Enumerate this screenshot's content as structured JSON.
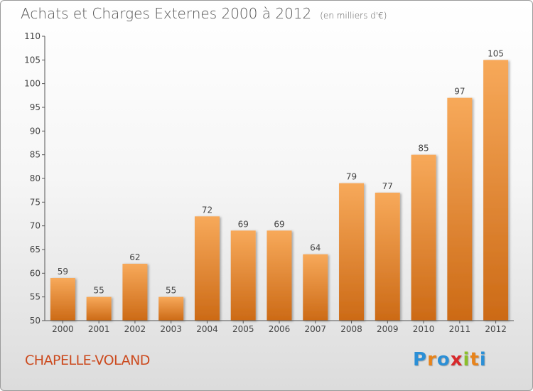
{
  "header": {
    "title": "Achats et Charges Externes 2000 à 2012",
    "subtitle": "(en milliers d'€)"
  },
  "footer": {
    "commune": "CHAPELLE-VOLAND",
    "logo_text": "Proxiti"
  },
  "colors": {
    "bar_top": "#f7a95a",
    "bar_bottom": "#cc6a16",
    "commune_text": "#cc4a1e"
  },
  "chart_data": {
    "type": "bar",
    "title": "Achats et Charges Externes 2000 à 2012",
    "subtitle": "(en milliers d'€)",
    "categories": [
      "2000",
      "2001",
      "2002",
      "2003",
      "2004",
      "2005",
      "2006",
      "2007",
      "2008",
      "2009",
      "2010",
      "2011",
      "2012"
    ],
    "values": [
      59,
      55,
      62,
      55,
      72,
      69,
      69,
      64,
      79,
      77,
      85,
      97,
      105
    ],
    "data_labels": [
      "59",
      "55",
      "62",
      "55",
      "72",
      "69",
      "69",
      "64",
      "79",
      "77",
      "85",
      "97",
      "105"
    ],
    "y_ticks": [
      "50",
      "55",
      "60",
      "65",
      "70",
      "75",
      "80",
      "85",
      "90",
      "95",
      "100",
      "105",
      "110"
    ],
    "ylim": [
      50,
      110
    ],
    "xlabel": "",
    "ylabel": "",
    "grid": false,
    "legend": "none"
  }
}
